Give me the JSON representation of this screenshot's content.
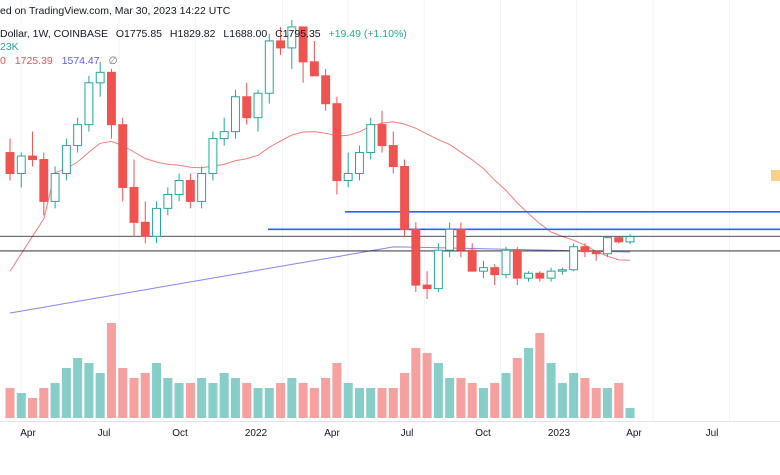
{
  "header": {
    "line1": "ed on TradingView.com, Mar 30, 2023 14:22 UTC",
    "symbol": "Dollar, 1W, COINBASE",
    "open": "O1775.85",
    "high": "H1829.82",
    "low": "L1688.00",
    "close": "C1795.35",
    "change": "+19.49 (+1.10%)",
    "volume": "23K",
    "ma_label": "0",
    "ma1": "1725.39",
    "ma2": "1574.47",
    "ma_extra": "∅"
  },
  "x_axis": {
    "labels": [
      "Apr",
      "Jul",
      "Oct",
      "2022",
      "Apr",
      "Jul",
      "Oct",
      "2023",
      "Apr",
      "Jul"
    ]
  },
  "colors": {
    "up": "#26a69a",
    "down": "#ef5350",
    "ma_fast": "#ef5350",
    "ma_slow": "#5b5fe8",
    "level_lines": "#2962ff",
    "sr_lines": "#131722"
  },
  "chart_data": {
    "type": "candlestick",
    "interval": "1W",
    "exchange": "COINBASE",
    "price_range_approx": [
      600,
      4900
    ],
    "series": [
      {
        "name": "Price",
        "candles_ohlc_approx": [
          [
            3000,
            3200,
            2600,
            2700
          ],
          [
            2700,
            3000,
            2500,
            2950
          ],
          [
            2950,
            3300,
            2800,
            2900
          ],
          [
            2900,
            3000,
            2100,
            2300
          ],
          [
            2300,
            2800,
            2200,
            2700
          ],
          [
            2700,
            3200,
            2600,
            3100
          ],
          [
            3100,
            3500,
            3000,
            3400
          ],
          [
            3400,
            4100,
            3300,
            4000
          ],
          [
            4000,
            4300,
            3800,
            4150
          ],
          [
            4150,
            4200,
            3200,
            3400
          ],
          [
            3400,
            3500,
            2300,
            2500
          ],
          [
            2500,
            2900,
            1800,
            2000
          ],
          [
            2000,
            2300,
            1700,
            1800
          ],
          [
            1800,
            2300,
            1700,
            2200
          ],
          [
            2200,
            2500,
            2100,
            2400
          ],
          [
            2400,
            2700,
            2300,
            2600
          ],
          [
            2600,
            2700,
            2200,
            2300
          ],
          [
            2300,
            2800,
            2200,
            2700
          ],
          [
            2700,
            3300,
            2600,
            3200
          ],
          [
            3200,
            3500,
            3100,
            3300
          ],
          [
            3300,
            3900,
            3200,
            3800
          ],
          [
            3800,
            4000,
            3400,
            3500
          ],
          [
            3500,
            3900,
            3300,
            3850
          ],
          [
            3850,
            4700,
            3700,
            4600
          ],
          [
            4600,
            4800,
            4400,
            4500
          ],
          [
            4500,
            4900,
            4200,
            4800
          ],
          [
            4800,
            4600,
            4000,
            4300
          ],
          [
            4300,
            4600,
            4100,
            4100
          ],
          [
            4100,
            4200,
            3600,
            3700
          ],
          [
            3700,
            3800,
            2400,
            2600
          ],
          [
            2600,
            3000,
            2500,
            2700
          ],
          [
            2700,
            3100,
            2600,
            3000
          ],
          [
            3000,
            3500,
            2900,
            3400
          ],
          [
            3400,
            3600,
            3000,
            3100
          ],
          [
            3100,
            3300,
            2700,
            2800
          ],
          [
            2800,
            2900,
            1800,
            1900
          ],
          [
            1900,
            2000,
            1000,
            1100
          ],
          [
            1100,
            1300,
            900,
            1050
          ],
          [
            1050,
            1700,
            1000,
            1600
          ],
          [
            1600,
            2000,
            1500,
            1900
          ],
          [
            1900,
            2000,
            1500,
            1600
          ],
          [
            1600,
            1700,
            1300,
            1300
          ],
          [
            1300,
            1450,
            1200,
            1350
          ],
          [
            1350,
            1400,
            1100,
            1250
          ],
          [
            1250,
            1650,
            1200,
            1600
          ],
          [
            1600,
            1650,
            1100,
            1200
          ],
          [
            1200,
            1300,
            1150,
            1270
          ],
          [
            1270,
            1300,
            1150,
            1200
          ],
          [
            1200,
            1350,
            1150,
            1300
          ],
          [
            1300,
            1350,
            1250,
            1320
          ],
          [
            1320,
            1700,
            1300,
            1650
          ],
          [
            1650,
            1700,
            1500,
            1580
          ],
          [
            1580,
            1600,
            1450,
            1550
          ],
          [
            1550,
            1800,
            1500,
            1780
          ],
          [
            1780,
            1800,
            1700,
            1720
          ],
          [
            1720,
            1830,
            1688,
            1795
          ]
        ]
      },
      {
        "name": "MA fast",
        "last_value": 1725.39
      },
      {
        "name": "MA slow",
        "last_value": 1574.47
      }
    ],
    "horizontal_levels_approx": [
      {
        "kind": "blue",
        "price": 2150
      },
      {
        "kind": "blue",
        "price": 1900
      },
      {
        "kind": "black",
        "price": 1800
      },
      {
        "kind": "black",
        "price": 1590
      }
    ],
    "volume_bars_relative": [
      0.3,
      0.25,
      0.2,
      0.3,
      0.35,
      0.5,
      0.6,
      0.55,
      0.45,
      0.95,
      0.5,
      0.4,
      0.45,
      0.55,
      0.4,
      0.35,
      0.35,
      0.4,
      0.35,
      0.45,
      0.4,
      0.35,
      0.3,
      0.3,
      0.35,
      0.4,
      0.35,
      0.3,
      0.4,
      0.55,
      0.35,
      0.3,
      0.3,
      0.3,
      0.3,
      0.45,
      0.7,
      0.65,
      0.55,
      0.4,
      0.4,
      0.35,
      0.3,
      0.35,
      0.45,
      0.6,
      0.7,
      0.85,
      0.55,
      0.35,
      0.45,
      0.4,
      0.3,
      0.3,
      0.35,
      0.1
    ]
  }
}
